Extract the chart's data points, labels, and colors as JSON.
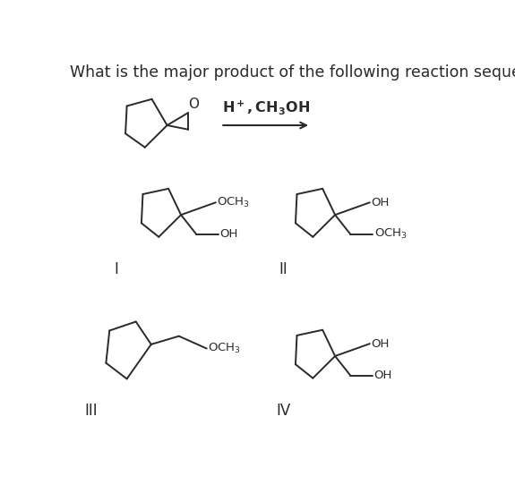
{
  "title": "What is the major product of the following reaction sequence?",
  "title_fontsize": 12.5,
  "reagent_label": "H$^+$, CH$_3$OH",
  "background_color": "#ffffff",
  "line_color": "#2a2a2a",
  "text_color": "#2a2a2a",
  "label_I": "I",
  "label_II": "II",
  "label_III": "III",
  "label_IV": "IV",
  "label_fontsize": 12
}
